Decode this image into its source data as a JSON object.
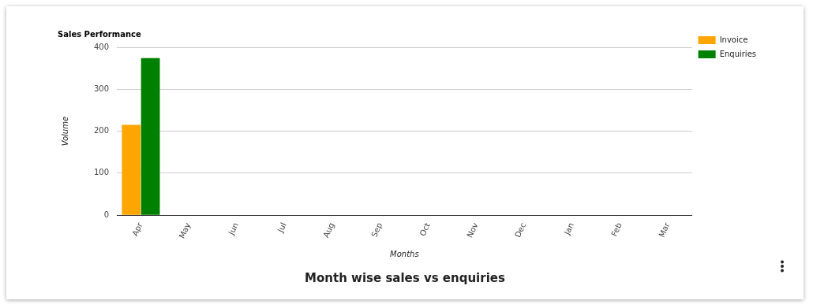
{
  "chart_data": {
    "type": "bar",
    "title": "Sales Performance",
    "subtitle": "Month wise sales vs enquiries",
    "xlabel": "Months",
    "ylabel": "Volume",
    "categories": [
      "Apr",
      "May",
      "Jun",
      "Jul",
      "Aug",
      "Sep",
      "Oct",
      "Nov",
      "Dec",
      "Jan",
      "Feb",
      "Mar"
    ],
    "series": [
      {
        "name": "Invoice",
        "color": "#ffa500",
        "values": [
          215,
          0,
          0,
          0,
          0,
          0,
          0,
          0,
          0,
          0,
          0,
          0
        ]
      },
      {
        "name": "Enquiries",
        "color": "#008000",
        "values": [
          374,
          0,
          0,
          0,
          0,
          0,
          0,
          0,
          0,
          0,
          0,
          0
        ]
      }
    ],
    "ylim": [
      0,
      400
    ],
    "yticks": [
      0,
      100,
      200,
      300,
      400
    ],
    "grid": "y",
    "legend": "top right"
  }
}
